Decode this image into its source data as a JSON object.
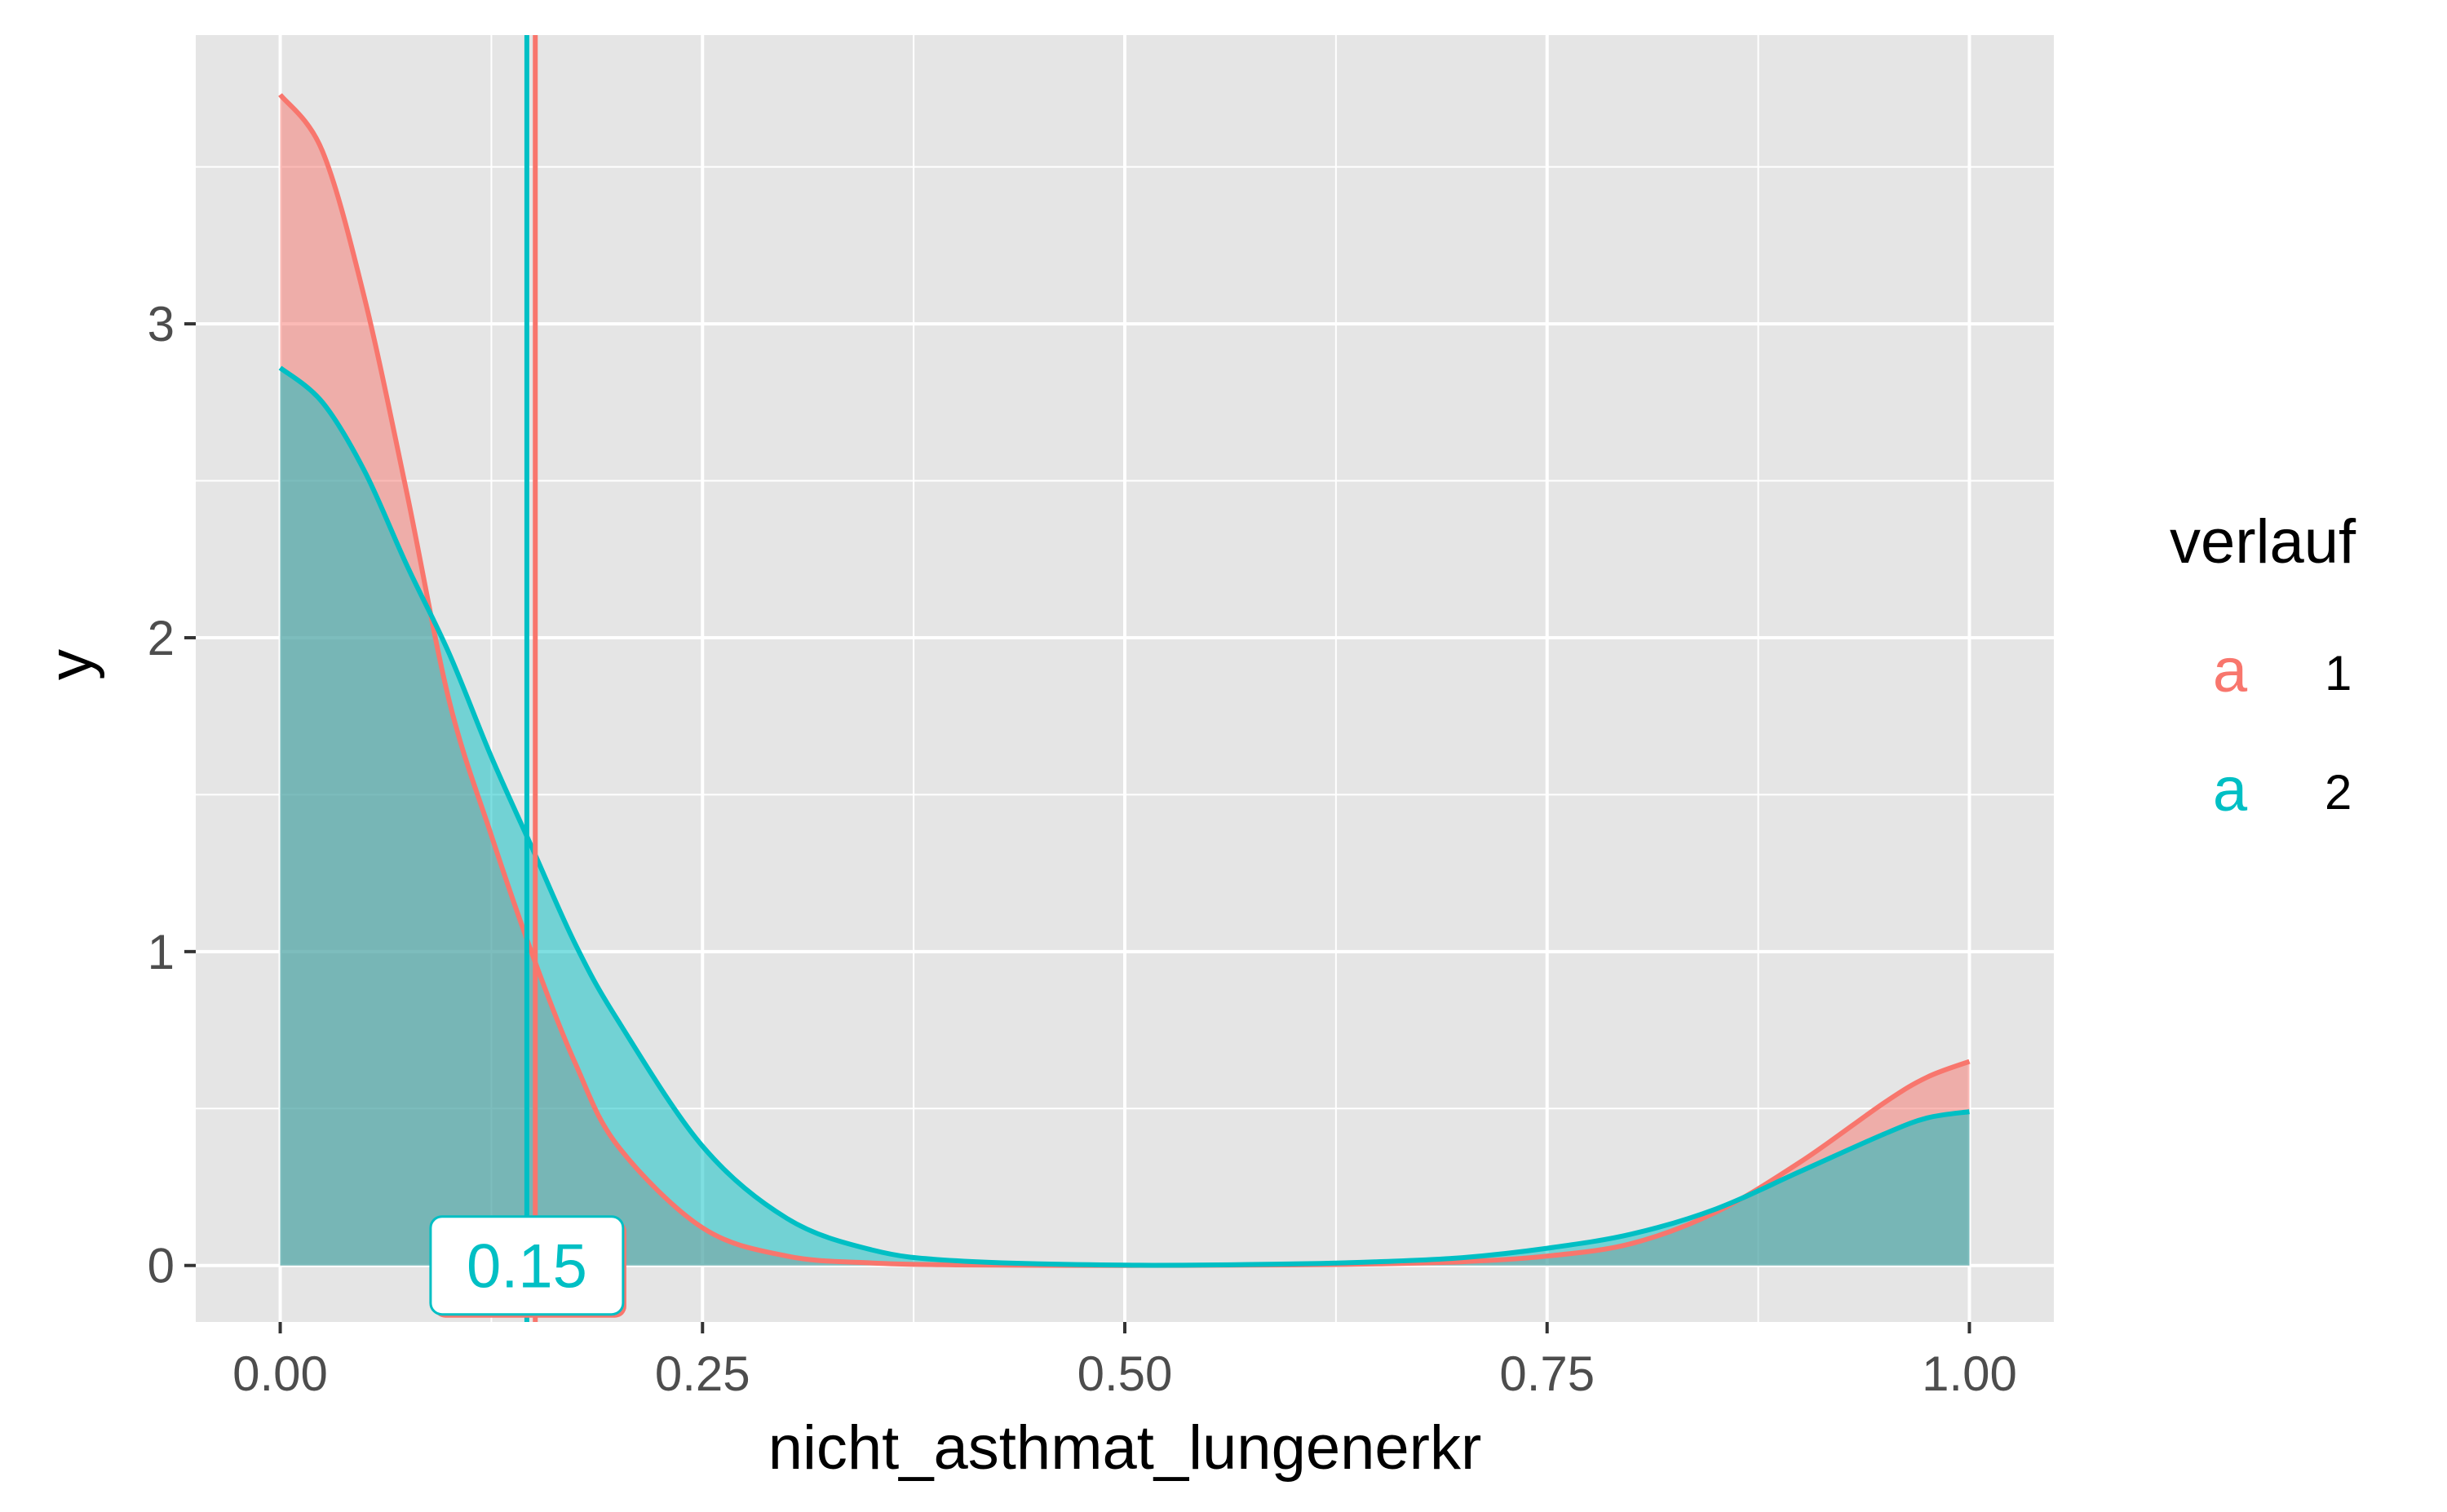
{
  "chart_data": {
    "type": "area",
    "title": "",
    "xlabel": "nicht_asthmat_lungenerkr",
    "ylabel": "y",
    "xlim": [
      -0.1,
      2.0
    ],
    "ylim": [
      -0.18,
      3.92
    ],
    "plot_xlim": [
      -0.05,
      1.05
    ],
    "x_ticks": [
      0.0,
      0.25,
      0.5,
      0.75,
      1.0
    ],
    "x_tick_labels": [
      "0.00",
      "0.25",
      "0.50",
      "0.75",
      "1.00"
    ],
    "y_ticks": [
      0,
      1,
      2,
      3
    ],
    "y_tick_labels": [
      "0",
      "1",
      "2",
      "3"
    ],
    "grid": true,
    "background": "#e5e5e5",
    "legend": {
      "title": "verlauf",
      "position": "right",
      "key_glyph": "a",
      "items": [
        {
          "label": "1",
          "color": "#f8766d"
        },
        {
          "label": "2",
          "color": "#00bfc4"
        }
      ]
    },
    "series": [
      {
        "name": "1",
        "color": "#f8766d",
        "fill": "#f8766d",
        "fill_opacity": 0.5,
        "x": [
          0.0,
          0.025,
          0.05,
          0.075,
          0.1,
          0.125,
          0.15,
          0.175,
          0.2,
          0.25,
          0.3,
          0.35,
          0.4,
          0.5,
          0.6,
          0.65,
          0.7,
          0.75,
          0.8,
          0.85,
          0.9,
          0.95,
          0.975,
          1.0
        ],
        "values": [
          3.73,
          3.55,
          3.08,
          2.46,
          1.8,
          1.37,
          0.98,
          0.64,
          0.38,
          0.12,
          0.03,
          0.008,
          0.002,
          0.0,
          0.002,
          0.005,
          0.012,
          0.03,
          0.07,
          0.17,
          0.33,
          0.52,
          0.6,
          0.65
        ]
      },
      {
        "name": "2",
        "color": "#00bfc4",
        "fill": "#00bfc4",
        "fill_opacity": 0.5,
        "x": [
          0.0,
          0.025,
          0.05,
          0.075,
          0.1,
          0.125,
          0.15,
          0.175,
          0.2,
          0.25,
          0.3,
          0.35,
          0.4,
          0.5,
          0.6,
          0.65,
          0.7,
          0.75,
          0.8,
          0.85,
          0.9,
          0.95,
          0.975,
          1.0
        ],
        "values": [
          2.86,
          2.75,
          2.53,
          2.23,
          1.95,
          1.62,
          1.32,
          1.02,
          0.78,
          0.38,
          0.15,
          0.05,
          0.015,
          0.001,
          0.005,
          0.012,
          0.025,
          0.055,
          0.1,
          0.18,
          0.3,
          0.42,
          0.47,
          0.49
        ]
      }
    ],
    "vlines": [
      {
        "x": 0.151,
        "color": "#f8766d"
      },
      {
        "x": 0.146,
        "color": "#00bfc4"
      }
    ],
    "annotation": {
      "text": "0.15",
      "x": 0.146,
      "y": 0,
      "color": "#00bfc4"
    }
  }
}
